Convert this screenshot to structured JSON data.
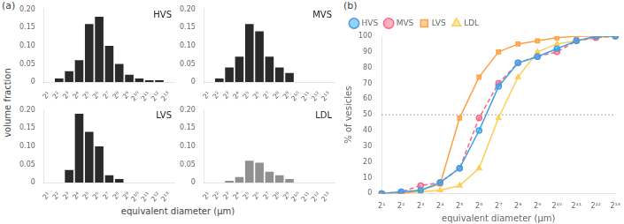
{
  "chart_data": [
    {
      "type": "bar",
      "annotations": [
        "(a)"
      ],
      "xlabel": "equivalent diameter (μm)",
      "ylabel": "volume fraction",
      "categories": [
        "2¹",
        "2²",
        "2³",
        "2⁴",
        "2⁵",
        "2⁶",
        "2⁷",
        "2⁸",
        "2⁹",
        "2¹⁰",
        "2¹¹",
        "2¹²",
        "2¹³"
      ],
      "ylim": [
        0,
        0.2
      ],
      "yticks": [
        0,
        0.05,
        {
          "value": 0.1,
          "label": "0.10"
        },
        0.15,
        {
          "value": 0.2,
          "label": "0.20"
        }
      ],
      "grid": false,
      "panels": [
        {
          "name": "HVS",
          "color": "#2a2a2a",
          "values": [
            null,
            0.01,
            0.03,
            0.06,
            0.16,
            0.18,
            0.1,
            0.05,
            0.02,
            0.01,
            0.005,
            0.005,
            0.0
          ]
        },
        {
          "name": "MVS",
          "color": "#2a2a2a",
          "values": [
            null,
            0.01,
            0.04,
            0.07,
            0.16,
            0.14,
            0.07,
            0.04,
            0.025,
            0.0,
            0.0,
            0.0,
            0.0
          ]
        },
        {
          "name": "LVS",
          "color": "#2a2a2a",
          "values": [
            null,
            0.0,
            0.035,
            0.19,
            0.14,
            0.1,
            0.02,
            0.01,
            0.0,
            0.0,
            0.0,
            0.0,
            0.0
          ]
        },
        {
          "name": "LDL",
          "color": "#909090",
          "values": [
            null,
            0.0,
            0.005,
            0.015,
            0.06,
            0.055,
            0.03,
            0.02,
            0.01,
            0.0,
            0.0,
            0.0,
            0.0
          ]
        }
      ]
    },
    {
      "type": "line",
      "annotations": [
        "(b)"
      ],
      "xlabel": "equivalent diameter (μm)",
      "ylabel": "% of vesicles",
      "categories": [
        "2¹",
        "2²",
        "2³",
        "2⁴",
        "2⁵",
        "2⁶",
        "2⁷",
        "2⁸",
        "2⁹",
        "2¹⁰",
        "2¹¹",
        "2¹²",
        "2¹³"
      ],
      "ylim": [
        0,
        100
      ],
      "yticks": [
        0,
        10,
        20,
        30,
        40,
        50,
        60,
        70,
        80,
        90,
        100
      ],
      "grid": false,
      "legend": "upper left",
      "hline": 50,
      "series": [
        {
          "name": "HVS",
          "marker": "circle",
          "line_style": "solid",
          "values": [
            0,
            1,
            2,
            7,
            16,
            40,
            68,
            83,
            87,
            92,
            97,
            100,
            100
          ]
        },
        {
          "name": "MVS",
          "marker": "circle",
          "line_style": "dashed",
          "values": [
            0,
            1,
            5,
            7,
            16,
            48,
            70,
            83,
            87,
            90,
            97,
            99,
            100
          ]
        },
        {
          "name": "LVS",
          "marker": "square",
          "line_style": "solid",
          "values": [
            0,
            0,
            2,
            6,
            48,
            74,
            90,
            95,
            97,
            99,
            100,
            100,
            100
          ]
        },
        {
          "name": "LDL",
          "marker": "triangle",
          "line_style": "solid",
          "values": [
            0,
            0,
            1,
            2,
            5,
            16,
            48,
            74,
            90,
            95,
            97,
            99,
            100
          ]
        }
      ]
    }
  ]
}
